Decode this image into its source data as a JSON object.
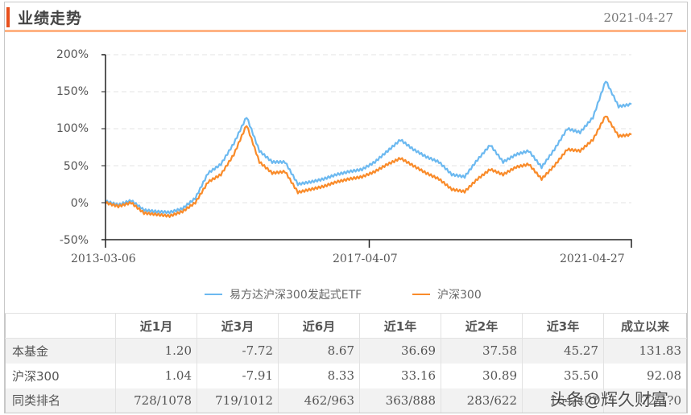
{
  "header": {
    "title": "业绩走势",
    "date": "2021-04-27",
    "accent_color": "#e8501c",
    "underline_color": "#ffb384"
  },
  "chart_data": {
    "type": "line",
    "title": "业绩走势",
    "xlabel": "",
    "ylabel": "",
    "ylim": [
      -50,
      200
    ],
    "yticks": [
      "200%",
      "150%",
      "100%",
      "50%",
      "0%",
      "-50%"
    ],
    "xticks": [
      "2013-03-06",
      "2017-04-07",
      "2021-04-27"
    ],
    "grid": true,
    "legend_position": "bottom",
    "x": [
      "2013-03",
      "2013-06",
      "2013-09",
      "2013-12",
      "2014-03",
      "2014-06",
      "2014-09",
      "2014-11",
      "2015-01",
      "2015-03",
      "2015-04",
      "2015-06",
      "2015-07",
      "2015-09",
      "2015-12",
      "2016-01",
      "2016-03",
      "2016-06",
      "2016-09",
      "2016-12",
      "2017-04",
      "2017-07",
      "2017-10",
      "2018-01",
      "2018-03",
      "2018-06",
      "2018-09",
      "2018-12",
      "2019-01",
      "2019-04",
      "2019-06",
      "2019-09",
      "2019-12",
      "2020-01",
      "2020-03",
      "2020-06",
      "2020-07",
      "2020-09",
      "2020-12",
      "2021-02",
      "2021-03",
      "2021-04"
    ],
    "series": [
      {
        "name": "易方达沪深300发起式ETF",
        "color": "#6cb9f0",
        "values": [
          2,
          -3,
          3,
          -10,
          -12,
          -13,
          -8,
          6,
          40,
          52,
          80,
          116,
          70,
          55,
          55,
          25,
          28,
          32,
          38,
          42,
          45,
          55,
          70,
          85,
          72,
          62,
          55,
          38,
          35,
          58,
          78,
          55,
          65,
          70,
          48,
          72,
          100,
          95,
          115,
          165,
          130,
          133
        ]
      },
      {
        "name": "沪深300",
        "color": "#f98b2a",
        "values": [
          0,
          -5,
          0,
          -14,
          -16,
          -18,
          -12,
          0,
          28,
          38,
          65,
          105,
          55,
          40,
          42,
          14,
          18,
          22,
          28,
          32,
          35,
          42,
          52,
          60,
          50,
          40,
          32,
          18,
          15,
          32,
          45,
          38,
          48,
          52,
          32,
          50,
          72,
          70,
          85,
          118,
          90,
          92
        ]
      }
    ]
  },
  "legend": [
    {
      "label": "易方达沪深300发起式ETF",
      "color": "#6cb9f0"
    },
    {
      "label": "沪深300",
      "color": "#f98b2a"
    }
  ],
  "table": {
    "columns": [
      "",
      "近1月",
      "近3月",
      "近6月",
      "近1年",
      "近2年",
      "近3年",
      "成立以来"
    ],
    "rows": [
      {
        "label": "本基金",
        "values": [
          "1.20",
          "-7.72",
          "8.67",
          "36.69",
          "37.58",
          "45.27",
          "131.83"
        ]
      },
      {
        "label": "沪深300",
        "values": [
          "1.04",
          "-7.91",
          "8.33",
          "33.16",
          "30.89",
          "35.50",
          "92.08"
        ]
      },
      {
        "label": "同类排名",
        "values": [
          "728/1078",
          "719/1012",
          "462/963",
          "363/888",
          "283/622",
          "164/47?",
          "?2/1?0"
        ]
      }
    ]
  },
  "watermark": "头条@辉久财富"
}
